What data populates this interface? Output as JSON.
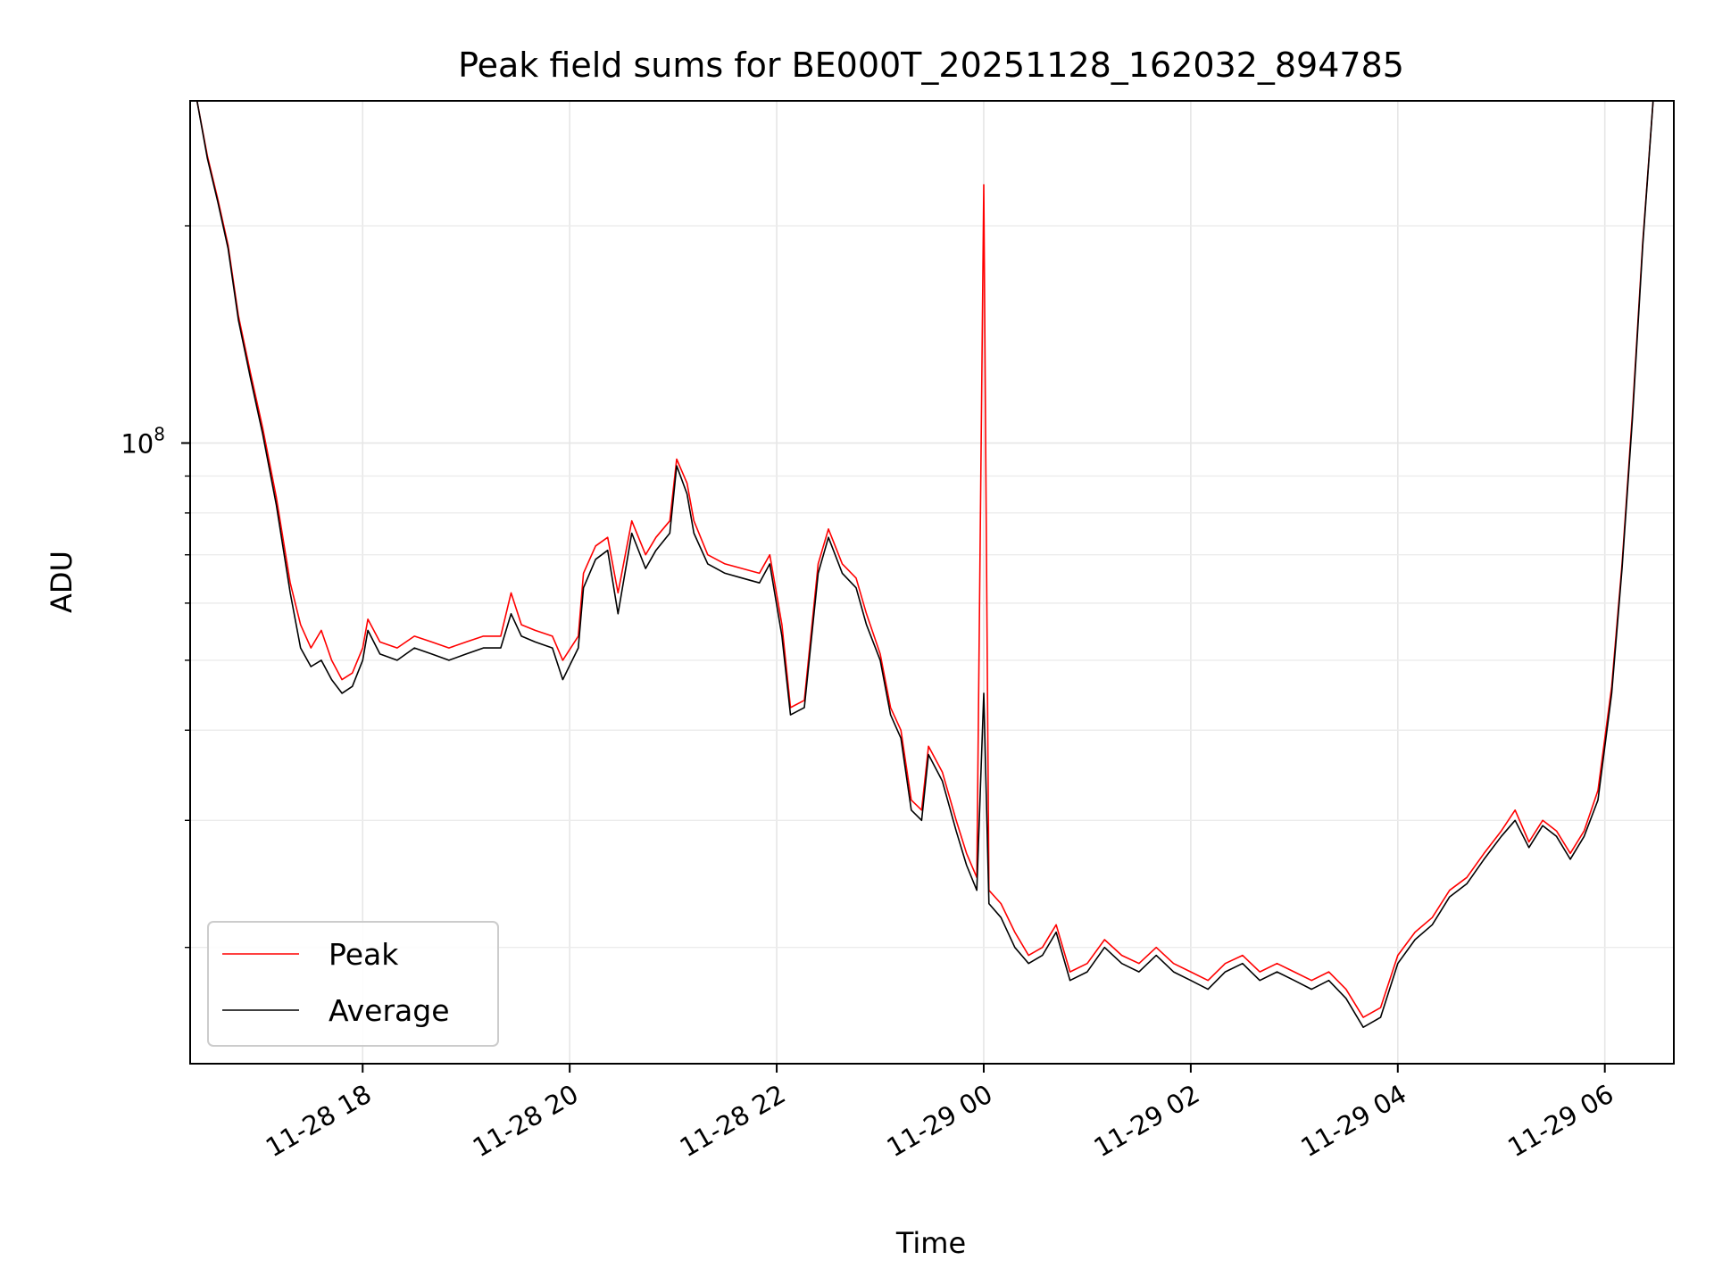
{
  "chart_data": {
    "type": "line",
    "title": "Peak field sums for BE000T_20251128_162032_894785",
    "xlabel": "Time",
    "ylabel": "ADU",
    "yscale": "log",
    "xlim": [
      "2025-11-28 16:20",
      "2025-11-29 06:40"
    ],
    "ylim": [
      13800000,
      298000000
    ],
    "grid": true,
    "legend_position": "lower-left",
    "x_ticks": [
      "11-28 18",
      "11-28 20",
      "11-28 22",
      "11-29 00",
      "11-29 02",
      "11-29 04",
      "11-29 06"
    ],
    "y_ticks": [
      {
        "value": 100000000,
        "label": "10",
        "exponent": "8"
      }
    ],
    "y_minor_ticks": [
      20000000,
      30000000,
      40000000,
      50000000,
      60000000,
      70000000,
      80000000,
      90000000,
      200000000
    ],
    "series": [
      {
        "name": "Peak",
        "color": "#ff0000",
        "points": [
          [
            "2025-11-28 16:24",
            298000000
          ],
          [
            "2025-11-28 16:30",
            250000000
          ],
          [
            "2025-11-28 16:36",
            218000000
          ],
          [
            "2025-11-28 16:42",
            188000000
          ],
          [
            "2025-11-28 16:48",
            150000000
          ],
          [
            "2025-11-28 16:55",
            125000000
          ],
          [
            "2025-11-28 17:02",
            105000000
          ],
          [
            "2025-11-28 17:10",
            84000000
          ],
          [
            "2025-11-28 17:18",
            64000000
          ],
          [
            "2025-11-28 17:24",
            56000000
          ],
          [
            "2025-11-28 17:30",
            52000000
          ],
          [
            "2025-11-28 17:36",
            55000000
          ],
          [
            "2025-11-28 17:42",
            50000000
          ],
          [
            "2025-11-28 17:48",
            47000000
          ],
          [
            "2025-11-28 17:54",
            48000000
          ],
          [
            "2025-11-28 18:00",
            52000000
          ],
          [
            "2025-11-28 18:03",
            57000000
          ],
          [
            "2025-11-28 18:10",
            53000000
          ],
          [
            "2025-11-28 18:20",
            52000000
          ],
          [
            "2025-11-28 18:30",
            54000000
          ],
          [
            "2025-11-28 18:40",
            53000000
          ],
          [
            "2025-11-28 18:50",
            52000000
          ],
          [
            "2025-11-28 19:00",
            53000000
          ],
          [
            "2025-11-28 19:10",
            54000000
          ],
          [
            "2025-11-28 19:20",
            54000000
          ],
          [
            "2025-11-28 19:26",
            62000000
          ],
          [
            "2025-11-28 19:32",
            56000000
          ],
          [
            "2025-11-28 19:40",
            55000000
          ],
          [
            "2025-11-28 19:50",
            54000000
          ],
          [
            "2025-11-28 19:56",
            50000000
          ],
          [
            "2025-11-28 20:05",
            54000000
          ],
          [
            "2025-11-28 20:08",
            66000000
          ],
          [
            "2025-11-28 20:15",
            72000000
          ],
          [
            "2025-11-28 20:22",
            74000000
          ],
          [
            "2025-11-28 20:28",
            62000000
          ],
          [
            "2025-11-28 20:36",
            78000000
          ],
          [
            "2025-11-28 20:44",
            70000000
          ],
          [
            "2025-11-28 20:50",
            74000000
          ],
          [
            "2025-11-28 20:58",
            78000000
          ],
          [
            "2025-11-28 21:02",
            95000000
          ],
          [
            "2025-11-28 21:08",
            88000000
          ],
          [
            "2025-11-28 21:12",
            78000000
          ],
          [
            "2025-11-28 21:20",
            70000000
          ],
          [
            "2025-11-28 21:30",
            68000000
          ],
          [
            "2025-11-28 21:40",
            67000000
          ],
          [
            "2025-11-28 21:50",
            66000000
          ],
          [
            "2025-11-28 21:56",
            70000000
          ],
          [
            "2025-11-28 22:03",
            56000000
          ],
          [
            "2025-11-28 22:08",
            43000000
          ],
          [
            "2025-11-28 22:16",
            44000000
          ],
          [
            "2025-11-28 22:24",
            68000000
          ],
          [
            "2025-11-28 22:30",
            76000000
          ],
          [
            "2025-11-28 22:38",
            68000000
          ],
          [
            "2025-11-28 22:46",
            65000000
          ],
          [
            "2025-11-28 22:52",
            58000000
          ],
          [
            "2025-11-28 23:00",
            51000000
          ],
          [
            "2025-11-28 23:06",
            43000000
          ],
          [
            "2025-11-28 23:12",
            40000000
          ],
          [
            "2025-11-28 23:18",
            32000000
          ],
          [
            "2025-11-28 23:24",
            31000000
          ],
          [
            "2025-11-28 23:28",
            38000000
          ],
          [
            "2025-11-28 23:36",
            35000000
          ],
          [
            "2025-11-28 23:44",
            30000000
          ],
          [
            "2025-11-28 23:50",
            27000000
          ],
          [
            "2025-11-28 23:56",
            25000000
          ],
          [
            "2025-11-29 00:00",
            228000000
          ],
          [
            "2025-11-29 00:03",
            24000000
          ],
          [
            "2025-11-29 00:10",
            23000000
          ],
          [
            "2025-11-29 00:18",
            21000000
          ],
          [
            "2025-11-29 00:26",
            19500000
          ],
          [
            "2025-11-29 00:34",
            20000000
          ],
          [
            "2025-11-29 00:42",
            21500000
          ],
          [
            "2025-11-29 00:50",
            18500000
          ],
          [
            "2025-11-29 01:00",
            19000000
          ],
          [
            "2025-11-29 01:10",
            20500000
          ],
          [
            "2025-11-29 01:20",
            19500000
          ],
          [
            "2025-11-29 01:30",
            19000000
          ],
          [
            "2025-11-29 01:40",
            20000000
          ],
          [
            "2025-11-29 01:50",
            19000000
          ],
          [
            "2025-11-29 02:00",
            18500000
          ],
          [
            "2025-11-29 02:10",
            18000000
          ],
          [
            "2025-11-29 02:20",
            19000000
          ],
          [
            "2025-11-29 02:30",
            19500000
          ],
          [
            "2025-11-29 02:40",
            18500000
          ],
          [
            "2025-11-29 02:50",
            19000000
          ],
          [
            "2025-11-29 03:00",
            18500000
          ],
          [
            "2025-11-29 03:10",
            18000000
          ],
          [
            "2025-11-29 03:20",
            18500000
          ],
          [
            "2025-11-29 03:30",
            17500000
          ],
          [
            "2025-11-29 03:40",
            16000000
          ],
          [
            "2025-11-29 03:50",
            16500000
          ],
          [
            "2025-11-29 04:00",
            19500000
          ],
          [
            "2025-11-29 04:10",
            21000000
          ],
          [
            "2025-11-29 04:20",
            22000000
          ],
          [
            "2025-11-29 04:30",
            24000000
          ],
          [
            "2025-11-29 04:40",
            25000000
          ],
          [
            "2025-11-29 04:50",
            27000000
          ],
          [
            "2025-11-29 05:00",
            29000000
          ],
          [
            "2025-11-29 05:08",
            31000000
          ],
          [
            "2025-11-29 05:16",
            28000000
          ],
          [
            "2025-11-29 05:24",
            30000000
          ],
          [
            "2025-11-29 05:32",
            29000000
          ],
          [
            "2025-11-29 05:40",
            27000000
          ],
          [
            "2025-11-29 05:48",
            29000000
          ],
          [
            "2025-11-29 05:56",
            33000000
          ],
          [
            "2025-11-29 06:04",
            46000000
          ],
          [
            "2025-11-29 06:10",
            68000000
          ],
          [
            "2025-11-29 06:16",
            110000000
          ],
          [
            "2025-11-29 06:22",
            190000000
          ],
          [
            "2025-11-29 06:28",
            298000000
          ]
        ]
      },
      {
        "name": "Average",
        "color": "#000000",
        "points": [
          [
            "2025-11-28 16:24",
            298000000
          ],
          [
            "2025-11-28 16:30",
            248000000
          ],
          [
            "2025-11-28 16:36",
            216000000
          ],
          [
            "2025-11-28 16:42",
            186000000
          ],
          [
            "2025-11-28 16:48",
            148000000
          ],
          [
            "2025-11-28 16:55",
            123000000
          ],
          [
            "2025-11-28 17:02",
            103000000
          ],
          [
            "2025-11-28 17:10",
            82000000
          ],
          [
            "2025-11-28 17:18",
            62000000
          ],
          [
            "2025-11-28 17:24",
            52000000
          ],
          [
            "2025-11-28 17:30",
            49000000
          ],
          [
            "2025-11-28 17:36",
            50000000
          ],
          [
            "2025-11-28 17:42",
            47000000
          ],
          [
            "2025-11-28 17:48",
            45000000
          ],
          [
            "2025-11-28 17:54",
            46000000
          ],
          [
            "2025-11-28 18:00",
            50000000
          ],
          [
            "2025-11-28 18:03",
            55000000
          ],
          [
            "2025-11-28 18:10",
            51000000
          ],
          [
            "2025-11-28 18:20",
            50000000
          ],
          [
            "2025-11-28 18:30",
            52000000
          ],
          [
            "2025-11-28 18:40",
            51000000
          ],
          [
            "2025-11-28 18:50",
            50000000
          ],
          [
            "2025-11-28 19:00",
            51000000
          ],
          [
            "2025-11-28 19:10",
            52000000
          ],
          [
            "2025-11-28 19:20",
            52000000
          ],
          [
            "2025-11-28 19:26",
            58000000
          ],
          [
            "2025-11-28 19:32",
            54000000
          ],
          [
            "2025-11-28 19:40",
            53000000
          ],
          [
            "2025-11-28 19:50",
            52000000
          ],
          [
            "2025-11-28 19:56",
            47000000
          ],
          [
            "2025-11-28 20:05",
            52000000
          ],
          [
            "2025-11-28 20:08",
            63000000
          ],
          [
            "2025-11-28 20:15",
            69000000
          ],
          [
            "2025-11-28 20:22",
            71000000
          ],
          [
            "2025-11-28 20:28",
            58000000
          ],
          [
            "2025-11-28 20:36",
            75000000
          ],
          [
            "2025-11-28 20:44",
            67000000
          ],
          [
            "2025-11-28 20:50",
            71000000
          ],
          [
            "2025-11-28 20:58",
            75000000
          ],
          [
            "2025-11-28 21:02",
            93000000
          ],
          [
            "2025-11-28 21:08",
            85000000
          ],
          [
            "2025-11-28 21:12",
            75000000
          ],
          [
            "2025-11-28 21:20",
            68000000
          ],
          [
            "2025-11-28 21:30",
            66000000
          ],
          [
            "2025-11-28 21:40",
            65000000
          ],
          [
            "2025-11-28 21:50",
            64000000
          ],
          [
            "2025-11-28 21:56",
            68000000
          ],
          [
            "2025-11-28 22:03",
            54000000
          ],
          [
            "2025-11-28 22:08",
            42000000
          ],
          [
            "2025-11-28 22:16",
            43000000
          ],
          [
            "2025-11-28 22:24",
            66000000
          ],
          [
            "2025-11-28 22:30",
            74000000
          ],
          [
            "2025-11-28 22:38",
            66000000
          ],
          [
            "2025-11-28 22:46",
            63000000
          ],
          [
            "2025-11-28 22:52",
            56000000
          ],
          [
            "2025-11-28 23:00",
            50000000
          ],
          [
            "2025-11-28 23:06",
            42000000
          ],
          [
            "2025-11-28 23:12",
            39000000
          ],
          [
            "2025-11-28 23:18",
            31000000
          ],
          [
            "2025-11-28 23:24",
            30000000
          ],
          [
            "2025-11-28 23:28",
            37000000
          ],
          [
            "2025-11-28 23:36",
            34000000
          ],
          [
            "2025-11-28 23:44",
            29000000
          ],
          [
            "2025-11-28 23:50",
            26000000
          ],
          [
            "2025-11-28 23:56",
            24000000
          ],
          [
            "2025-11-29 00:00",
            45000000
          ],
          [
            "2025-11-29 00:03",
            23000000
          ],
          [
            "2025-11-29 00:10",
            22000000
          ],
          [
            "2025-11-29 00:18",
            20000000
          ],
          [
            "2025-11-29 00:26",
            19000000
          ],
          [
            "2025-11-29 00:34",
            19500000
          ],
          [
            "2025-11-29 00:42",
            21000000
          ],
          [
            "2025-11-29 00:50",
            18000000
          ],
          [
            "2025-11-29 01:00",
            18500000
          ],
          [
            "2025-11-29 01:10",
            20000000
          ],
          [
            "2025-11-29 01:20",
            19000000
          ],
          [
            "2025-11-29 01:30",
            18500000
          ],
          [
            "2025-11-29 01:40",
            19500000
          ],
          [
            "2025-11-29 01:50",
            18500000
          ],
          [
            "2025-11-29 02:00",
            18000000
          ],
          [
            "2025-11-29 02:10",
            17500000
          ],
          [
            "2025-11-29 02:20",
            18500000
          ],
          [
            "2025-11-29 02:30",
            19000000
          ],
          [
            "2025-11-29 02:40",
            18000000
          ],
          [
            "2025-11-29 02:50",
            18500000
          ],
          [
            "2025-11-29 03:00",
            18000000
          ],
          [
            "2025-11-29 03:10",
            17500000
          ],
          [
            "2025-11-29 03:20",
            18000000
          ],
          [
            "2025-11-29 03:30",
            17000000
          ],
          [
            "2025-11-29 03:40",
            15500000
          ],
          [
            "2025-11-29 03:50",
            16000000
          ],
          [
            "2025-11-29 04:00",
            19000000
          ],
          [
            "2025-11-29 04:10",
            20500000
          ],
          [
            "2025-11-29 04:20",
            21500000
          ],
          [
            "2025-11-29 04:30",
            23500000
          ],
          [
            "2025-11-29 04:40",
            24500000
          ],
          [
            "2025-11-29 04:50",
            26500000
          ],
          [
            "2025-11-29 05:00",
            28500000
          ],
          [
            "2025-11-29 05:08",
            30000000
          ],
          [
            "2025-11-29 05:16",
            27500000
          ],
          [
            "2025-11-29 05:24",
            29500000
          ],
          [
            "2025-11-29 05:32",
            28500000
          ],
          [
            "2025-11-29 05:40",
            26500000
          ],
          [
            "2025-11-29 05:48",
            28500000
          ],
          [
            "2025-11-29 05:56",
            32000000
          ],
          [
            "2025-11-29 06:04",
            45000000
          ],
          [
            "2025-11-29 06:10",
            67000000
          ],
          [
            "2025-11-29 06:16",
            108000000
          ],
          [
            "2025-11-29 06:22",
            188000000
          ],
          [
            "2025-11-29 06:28",
            298000000
          ]
        ]
      }
    ]
  }
}
